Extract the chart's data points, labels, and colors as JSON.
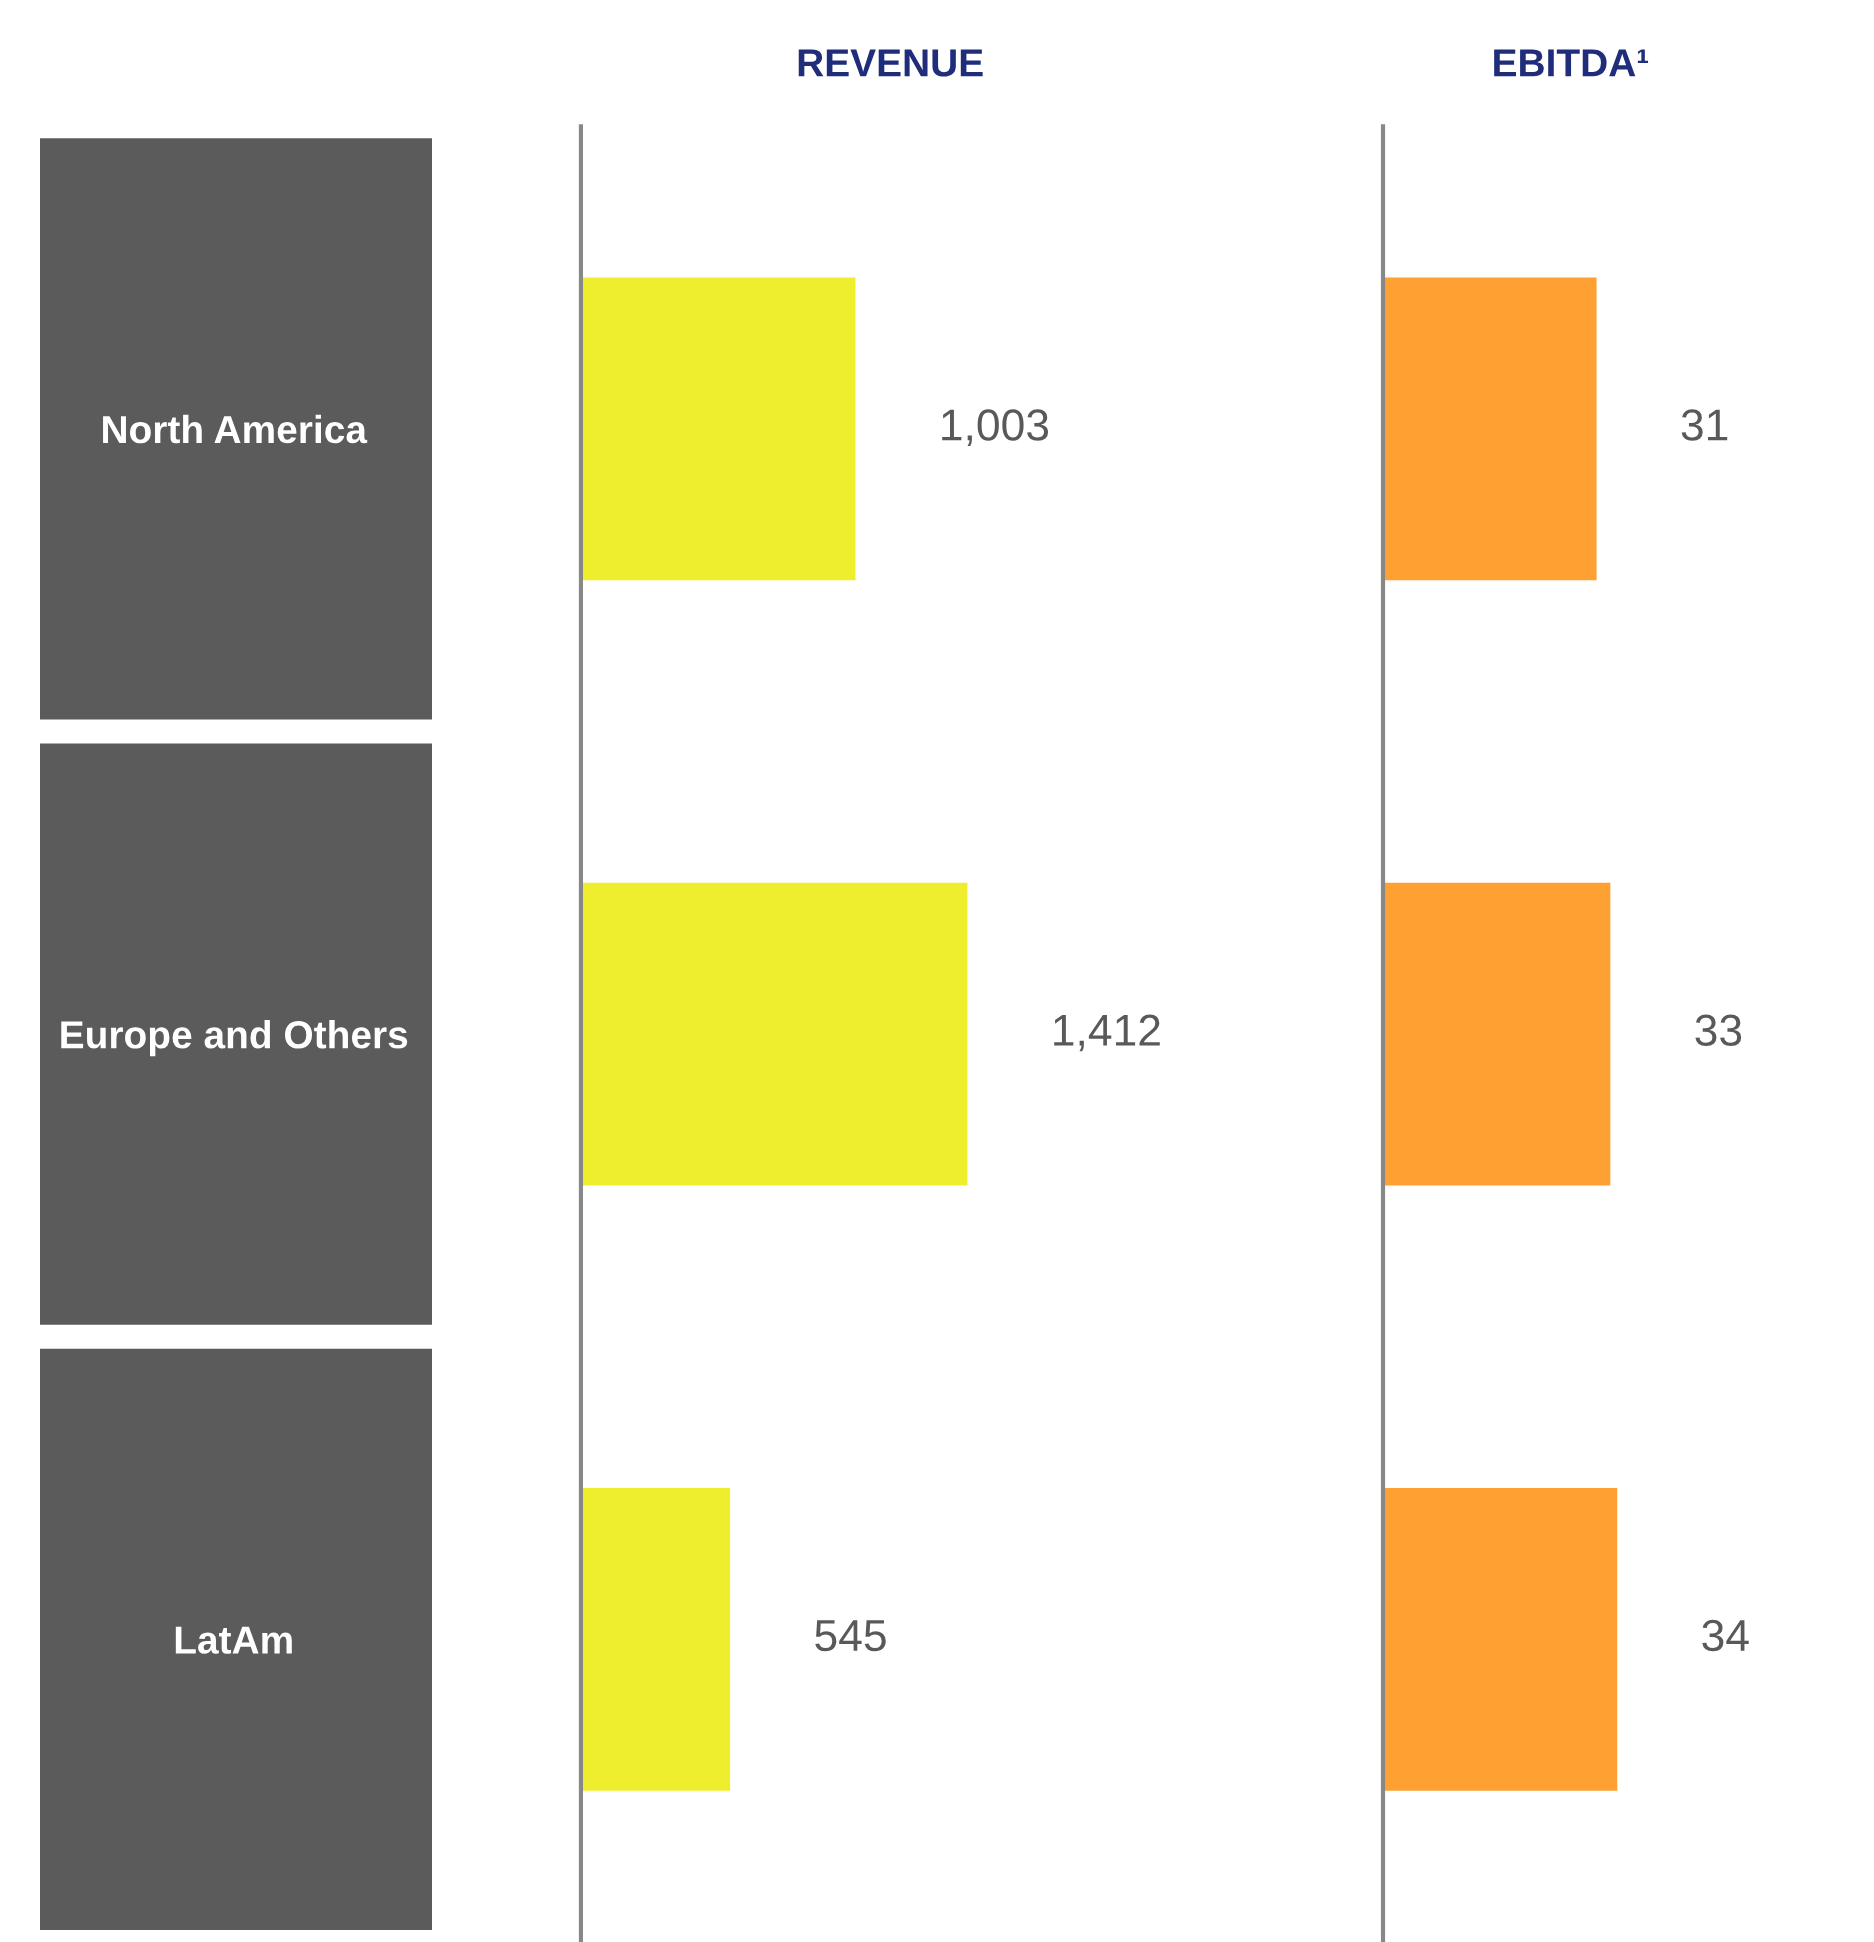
{
  "chart_data": [
    {
      "type": "bar",
      "orientation": "horizontal",
      "title": "REVENUE",
      "categories": [
        "North America",
        "Europe and Others",
        "LatAm"
      ],
      "values": [
        1003,
        1412,
        545
      ],
      "value_labels": [
        "1,003",
        "1,412",
        "545"
      ],
      "color": "#eeee2e",
      "tick_labels": "y",
      "grid": false,
      "legend": false
    },
    {
      "type": "bar",
      "orientation": "horizontal",
      "title": "EBITDA¹",
      "categories": [
        null,
        null,
        null
      ],
      "values": [
        31,
        33,
        34
      ],
      "color": "#ffa033",
      "data_labels": true,
      "tick_labels": false,
      "grid": false,
      "legend": false
    }
  ]
}
